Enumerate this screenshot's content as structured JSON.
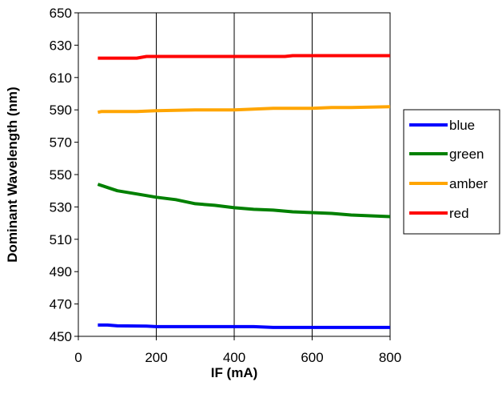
{
  "chart_data": {
    "type": "line",
    "title": "",
    "xlabel": "IF (mA)",
    "ylabel": "Dominant Wavelength (nm)",
    "xlim": [
      0,
      800
    ],
    "ylim": [
      450,
      650
    ],
    "x_ticks": [
      "0",
      "200",
      "400",
      "600",
      "800"
    ],
    "y_ticks": [
      "450",
      "470",
      "490",
      "510",
      "530",
      "550",
      "570",
      "590",
      "610",
      "630",
      "650"
    ],
    "grid": "vertical",
    "legend_position": "right",
    "series": [
      {
        "name": "blue",
        "color": "#0000ff",
        "x": [
          50,
          75,
          100,
          175,
          200,
          300,
          400,
          450,
          500,
          600,
          700,
          800
        ],
        "y": [
          457,
          457,
          456.5,
          456.3,
          456,
          456,
          456,
          456,
          455.5,
          455.5,
          455.5,
          455.5
        ]
      },
      {
        "name": "green",
        "color": "#008000",
        "x": [
          50,
          75,
          100,
          150,
          200,
          250,
          300,
          350,
          400,
          450,
          500,
          550,
          600,
          650,
          700,
          750,
          800
        ],
        "y": [
          544,
          542,
          540,
          538,
          536,
          534.5,
          532,
          531,
          529.5,
          528.5,
          528,
          527,
          526.5,
          526,
          525,
          524.5,
          524
        ]
      },
      {
        "name": "amber",
        "color": "#ffa500",
        "x": [
          50,
          60,
          100,
          150,
          200,
          300,
          400,
          450,
          500,
          600,
          650,
          700,
          800
        ],
        "y": [
          588.5,
          589,
          589,
          589,
          589.5,
          590,
          590,
          590.5,
          591,
          591,
          591.5,
          591.5,
          592
        ]
      },
      {
        "name": "red",
        "color": "#ff0000",
        "x": [
          50,
          100,
          150,
          175,
          200,
          300,
          400,
          500,
          530,
          550,
          600,
          700,
          800
        ],
        "y": [
          622,
          622,
          622,
          623,
          623,
          623,
          623,
          623,
          623,
          623.5,
          623.5,
          623.5,
          623.5
        ]
      }
    ]
  }
}
